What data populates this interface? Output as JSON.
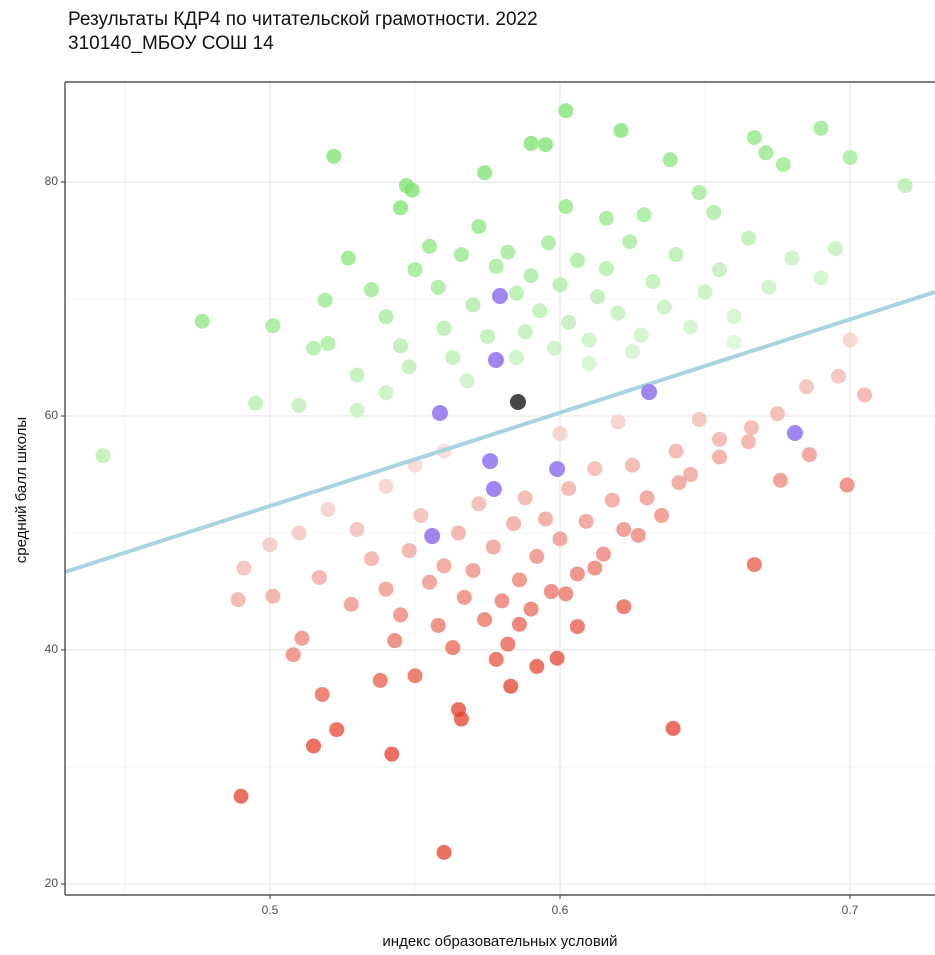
{
  "chart_data": {
    "type": "scatter",
    "title": "Результаты КДР4 по читательской грамотности. 2022",
    "subtitle": "310140_МБОУ СОШ 14",
    "x_label": "индекс образовательных условий",
    "y_label": "средний балл школы",
    "xlim": [
      0.4293,
      0.7293
    ],
    "ylim": [
      19.06,
      88.55
    ],
    "xticks": [
      0.5,
      0.6,
      0.7
    ],
    "yticks": [
      20,
      40,
      60,
      80
    ],
    "x_minor_ticks": [
      0.45,
      0.55,
      0.65
    ],
    "y_minor_ticks": [
      30,
      50,
      70
    ],
    "grid": true,
    "trend": {
      "x": [
        0.4293,
        0.7293
      ],
      "values": [
        46.67,
        70.6
      ],
      "color": "#a8d3e0"
    },
    "series": [
      {
        "color_low": "#e5402c",
        "color_high": "#7ae36c",
        "x": [
          0.4424,
          0.4766,
          0.501,
          0.522,
          0.547,
          0.549,
          0.545,
          0.602,
          0.621,
          0.59,
          0.595,
          0.574,
          0.69,
          0.7,
          0.667,
          0.671,
          0.719,
          0.638,
          0.677,
          0.648,
          0.602,
          0.616,
          0.629,
          0.653,
          0.527,
          0.519,
          0.495,
          0.51,
          0.49,
          0.56,
          0.639,
          0.542,
          0.515,
          0.523,
          0.518,
          0.566,
          0.565,
          0.583,
          0.592,
          0.599,
          0.538,
          0.508,
          0.511,
          0.528,
          0.517,
          0.491,
          0.489,
          0.501,
          0.622,
          0.606,
          0.627,
          0.667,
          0.641,
          0.676,
          0.699,
          0.686,
          0.705,
          0.696,
          0.655,
          0.648,
          0.666,
          0.535,
          0.54,
          0.545,
          0.55,
          0.555,
          0.558,
          0.56,
          0.563,
          0.566,
          0.57,
          0.572,
          0.575,
          0.578,
          0.582,
          0.585,
          0.588,
          0.59,
          0.593,
          0.596,
          0.598,
          0.6,
          0.603,
          0.606,
          0.61,
          0.613,
          0.616,
          0.62,
          0.624,
          0.628,
          0.632,
          0.636,
          0.64,
          0.645,
          0.65,
          0.655,
          0.66,
          0.665,
          0.672,
          0.68,
          0.69,
          0.695,
          0.52,
          0.53,
          0.54,
          0.548,
          0.568,
          0.585,
          0.61,
          0.625,
          0.66,
          0.7,
          0.53,
          0.515,
          0.53,
          0.535,
          0.54,
          0.545,
          0.548,
          0.552,
          0.555,
          0.558,
          0.56,
          0.563,
          0.565,
          0.567,
          0.57,
          0.572,
          0.574,
          0.577,
          0.58,
          0.582,
          0.584,
          0.586,
          0.588,
          0.59,
          0.592,
          0.595,
          0.597,
          0.6,
          0.603,
          0.606,
          0.609,
          0.612,
          0.615,
          0.618,
          0.622,
          0.625,
          0.63,
          0.635,
          0.64,
          0.645,
          0.655,
          0.665,
          0.675,
          0.685,
          0.54,
          0.55,
          0.52,
          0.51,
          0.5,
          0.543,
          0.55,
          0.578,
          0.586,
          0.602,
          0.612,
          0.56,
          0.6,
          0.62
        ],
        "values": [
          56.6,
          68.1,
          67.7,
          82.2,
          79.7,
          79.3,
          77.8,
          86.1,
          84.4,
          83.3,
          83.2,
          80.8,
          84.6,
          82.1,
          83.8,
          82.5,
          79.7,
          81.9,
          81.5,
          79.1,
          77.9,
          76.9,
          77.2,
          77.4,
          73.5,
          69.9,
          61.1,
          60.9,
          27.5,
          22.7,
          33.3,
          31.1,
          31.8,
          33.2,
          36.2,
          34.1,
          34.9,
          36.9,
          38.6,
          39.3,
          37.4,
          39.6,
          41.0,
          43.9,
          46.2,
          47.0,
          44.3,
          44.6,
          43.7,
          42.0,
          49.8,
          47.3,
          54.3,
          54.5,
          54.1,
          56.7,
          61.8,
          63.4,
          58.0,
          59.7,
          59.0,
          70.8,
          68.5,
          66.0,
          72.5,
          74.5,
          71.0,
          67.5,
          65.0,
          73.8,
          69.5,
          76.2,
          66.8,
          72.8,
          74.0,
          70.5,
          67.2,
          72.0,
          69.0,
          74.8,
          65.8,
          71.2,
          68.0,
          73.3,
          66.5,
          70.2,
          72.6,
          68.8,
          74.9,
          66.9,
          71.5,
          69.3,
          73.8,
          67.6,
          70.6,
          72.5,
          68.5,
          75.2,
          71.0,
          73.5,
          71.8,
          74.3,
          66.2,
          63.5,
          62.0,
          64.2,
          63.0,
          65.0,
          64.5,
          65.5,
          66.3,
          66.5,
          60.5,
          65.8,
          50.3,
          47.8,
          45.2,
          43.0,
          48.5,
          51.5,
          45.8,
          42.1,
          47.2,
          40.2,
          50.0,
          44.5,
          46.8,
          52.5,
          42.6,
          48.8,
          44.2,
          40.5,
          50.8,
          46.0,
          53.0,
          43.5,
          48.0,
          51.2,
          45.0,
          49.5,
          53.8,
          46.5,
          51.0,
          55.5,
          48.2,
          52.8,
          50.3,
          55.8,
          53.0,
          51.5,
          57.0,
          55.0,
          56.5,
          57.8,
          60.2,
          62.5,
          54.0,
          55.8,
          52.0,
          50.0,
          49.0,
          40.8,
          37.8,
          39.2,
          42.2,
          44.8,
          47.0,
          57.0,
          58.5,
          59.5
        ]
      },
      {
        "color": "#9b7ff0",
        "x": [
          0.5793,
          0.5779,
          0.5586,
          0.6307,
          0.681,
          0.5759,
          0.5772,
          0.599,
          0.5559
        ],
        "values": [
          70.26,
          64.79,
          60.26,
          62.05,
          58.55,
          56.15,
          53.76,
          55.47,
          49.74
        ]
      },
      {
        "color": "#3d3d3d",
        "x": [
          0.5855
        ],
        "values": [
          61.2
        ]
      }
    ]
  }
}
